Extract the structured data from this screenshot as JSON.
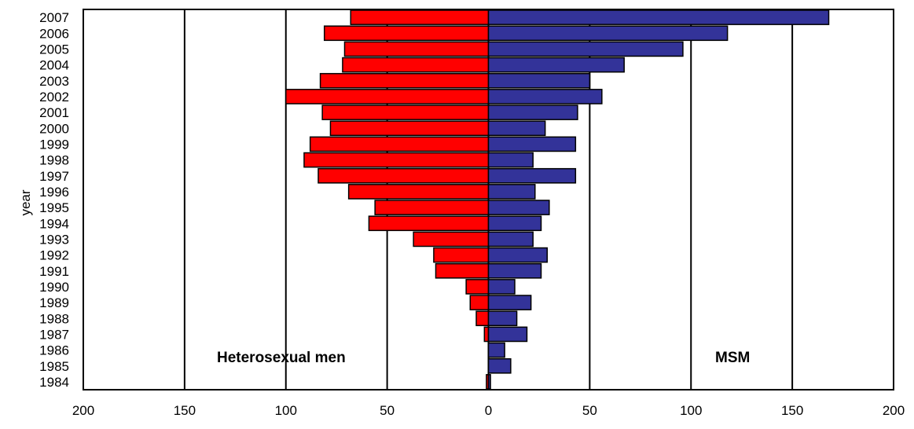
{
  "chart_data": {
    "type": "bar",
    "orientation": "horizontal",
    "layout": "population-pyramid",
    "categories": [
      "1984",
      "1985",
      "1986",
      "1987",
      "1988",
      "1989",
      "1990",
      "1991",
      "1992",
      "1993",
      "1994",
      "1995",
      "1996",
      "1997",
      "1998",
      "1999",
      "2000",
      "2001",
      "2002",
      "2003",
      "2004",
      "2005",
      "2006",
      "2007"
    ],
    "series": [
      {
        "name": "Heterosexual men",
        "side": "left",
        "color": "#ff0000",
        "values": [
          1,
          0,
          0,
          2,
          6,
          9,
          11,
          26,
          27,
          37,
          59,
          56,
          69,
          84,
          91,
          88,
          78,
          82,
          100,
          83,
          72,
          71,
          81,
          68
        ]
      },
      {
        "name": "MSM",
        "side": "right",
        "color": "#333399",
        "values": [
          1,
          11,
          8,
          19,
          14,
          21,
          13,
          26,
          29,
          22,
          26,
          30,
          23,
          43,
          22,
          43,
          28,
          44,
          56,
          50,
          67,
          96,
          118,
          168
        ]
      }
    ],
    "ylabel": "year",
    "xlabel": "",
    "xlim": [
      -200,
      200
    ],
    "x_tick_values": [
      -200,
      -150,
      -100,
      -50,
      0,
      50,
      100,
      150,
      200
    ],
    "x_tick_labels": [
      "200",
      "150",
      "100",
      "50",
      "0",
      "50",
      "100",
      "150",
      "200"
    ],
    "gridlines": "vertical",
    "legend": "none"
  }
}
